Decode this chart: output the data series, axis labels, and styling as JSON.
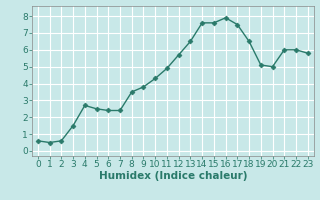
{
  "x": [
    0,
    1,
    2,
    3,
    4,
    5,
    6,
    7,
    8,
    9,
    10,
    11,
    12,
    13,
    14,
    15,
    16,
    17,
    18,
    19,
    20,
    21,
    22,
    23
  ],
  "y": [
    0.6,
    0.5,
    0.6,
    1.5,
    2.7,
    2.5,
    2.4,
    2.4,
    3.5,
    3.8,
    4.3,
    4.9,
    5.7,
    6.5,
    7.6,
    7.6,
    7.9,
    7.5,
    6.5,
    5.1,
    5.0,
    6.0,
    6.0,
    5.8
  ],
  "line_color": "#2a7a6a",
  "marker": "D",
  "marker_size": 2.5,
  "bg_color": "#c8e8e8",
  "grid_color": "#ffffff",
  "xlabel": "Humidex (Indice chaleur)",
  "xlabel_fontsize": 7.5,
  "ylabel_ticks": [
    0,
    1,
    2,
    3,
    4,
    5,
    6,
    7,
    8
  ],
  "xtick_labels": [
    "0",
    "1",
    "2",
    "3",
    "4",
    "5",
    "6",
    "7",
    "8",
    "9",
    "10",
    "11",
    "12",
    "13",
    "14",
    "15",
    "16",
    "17",
    "18",
    "19",
    "20",
    "21",
    "22",
    "23"
  ],
  "ylim": [
    -0.3,
    8.6
  ],
  "xlim": [
    -0.5,
    23.5
  ],
  "tick_fontsize": 6.5
}
